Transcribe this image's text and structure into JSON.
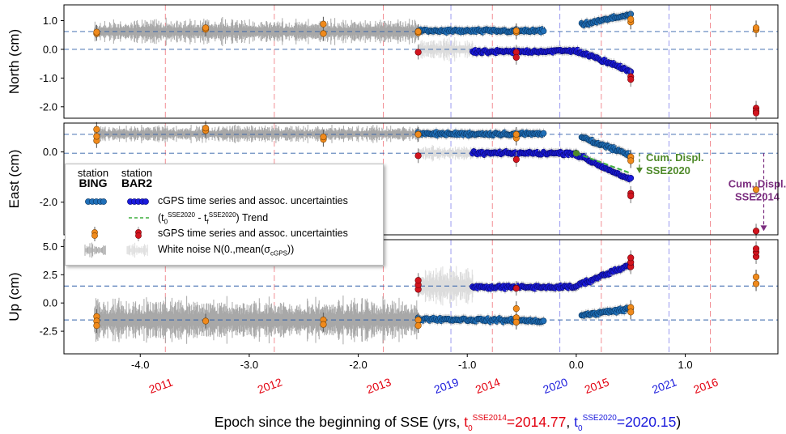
{
  "chart_data": {
    "type": "scatter",
    "xlabel_parts": [
      {
        "text": "Epoch since the beginning of SSE (yrs, ",
        "color": "#000000"
      },
      {
        "text": "t",
        "sub": "0",
        "sup": "SSE2014",
        "after": "=2014.77",
        "color": "#e3000f"
      },
      {
        "text": ", ",
        "color": "#000000"
      },
      {
        "text": "t",
        "sub": "0",
        "sup": "SSE2020",
        "after": "=2020.15",
        "color": "#1a1adc"
      },
      {
        "text": ")",
        "color": "#000000"
      }
    ],
    "xlim": [
      -4.7,
      1.85
    ],
    "xticks": [
      -4.0,
      -3.0,
      -2.0,
      -1.0,
      0.0,
      1.0
    ],
    "xtick_labels": [
      "-4.0",
      "-3.0",
      "-2.0",
      "-1.0",
      "0.0",
      "1.0"
    ],
    "year_labels_2014": {
      "color": "#e3000f",
      "years": [
        "2011",
        "2012",
        "2013",
        "2014",
        "2015",
        "2016"
      ],
      "x": [
        -3.77,
        -2.77,
        -1.77,
        -0.77,
        0.23,
        1.23
      ]
    },
    "year_labels_2020": {
      "color": "#1a1adc",
      "years": [
        "2019",
        "2020",
        "2021"
      ],
      "x": [
        -1.15,
        -0.15,
        0.85
      ]
    },
    "panels": [
      {
        "ylabel": "North (cm)",
        "ylim": [
          -2.4,
          1.55
        ],
        "yticks": [
          -2.0,
          -1.0,
          0.0,
          1.0
        ],
        "ytick_labels": [
          "-2.0",
          "-1.0",
          "0.0",
          "1.0"
        ],
        "ref_lines": [
          0.62,
          0.0
        ],
        "bing_level": 0.62,
        "bing_noise": 0.35,
        "bar2_level": 0.0,
        "bing_cgps_segments": [
          {
            "x": [
              -1.45,
              -0.3
            ],
            "y": [
              0.64,
              0.64
            ]
          },
          {
            "x": [
              0.05,
              0.5
            ],
            "y": [
              0.85,
              1.22
            ]
          }
        ],
        "bar2_cgps_segments": [
          {
            "x": [
              -0.95,
              0.0
            ],
            "y": [
              -0.1,
              -0.05
            ]
          },
          {
            "x": [
              0.0,
              0.5
            ],
            "y": [
              -0.05,
              -0.75
            ]
          }
        ],
        "bing_sgps": [
          {
            "x": -4.4,
            "y": [
              0.55,
              0.6
            ]
          },
          {
            "x": -3.4,
            "y": [
              0.7,
              0.75
            ]
          },
          {
            "x": -2.32,
            "y": [
              0.55,
              0.88
            ]
          },
          {
            "x": -1.45,
            "y": [
              0.58,
              0.62
            ]
          },
          {
            "x": -0.55,
            "y": [
              0.6,
              0.65
            ]
          },
          {
            "x": 0.5,
            "y": [
              0.95,
              1.05
            ]
          },
          {
            "x": 1.65,
            "y": [
              0.68,
              0.75
            ]
          }
        ],
        "bar2_sgps": [
          {
            "x": -1.45,
            "y": [
              -0.1
            ]
          },
          {
            "x": -0.55,
            "y": [
              -0.1,
              -0.28
            ]
          },
          {
            "x": 0.5,
            "y": [
              -0.95,
              -1.05
            ]
          },
          {
            "x": 1.65,
            "y": [
              -2.05,
              -2.15,
              -2.22
            ]
          }
        ]
      },
      {
        "ylabel": "East (cm)",
        "ylim": [
          -3.3,
          1.15
        ],
        "yticks": [
          -2.0,
          0.0
        ],
        "ytick_labels": [
          "-2.0",
          "0.0"
        ],
        "ref_lines": [
          0.7,
          -0.05
        ],
        "bing_level": 0.72,
        "bing_noise": 0.28,
        "bar2_level": -0.05,
        "bing_cgps_segments": [
          {
            "x": [
              -1.45,
              -0.3
            ],
            "y": [
              0.72,
              0.72
            ]
          },
          {
            "x": [
              0.05,
              0.5
            ],
            "y": [
              0.6,
              -0.15
            ]
          }
        ],
        "bar2_cgps_segments": [
          {
            "x": [
              -0.95,
              0.0
            ],
            "y": [
              -0.05,
              -0.05
            ]
          },
          {
            "x": [
              0.0,
              0.5
            ],
            "y": [
              -0.1,
              -1.1
            ]
          }
        ],
        "trend": {
          "x": [
            0.0,
            0.5
          ],
          "y": [
            -0.05,
            -0.85
          ]
        },
        "bing_sgps": [
          {
            "x": -4.4,
            "y": [
              0.45,
              0.62,
              0.9
            ]
          },
          {
            "x": -3.4,
            "y": [
              0.85,
              0.95
            ]
          },
          {
            "x": -2.32,
            "y": [
              0.5,
              0.6
            ]
          },
          {
            "x": -1.45,
            "y": [
              0.7
            ]
          },
          {
            "x": -0.55,
            "y": [
              0.55,
              0.7
            ]
          },
          {
            "x": 0.5,
            "y": [
              -0.2,
              -0.35
            ]
          },
          {
            "x": 1.65,
            "y": [
              -1.5
            ]
          }
        ],
        "bar2_sgps": [
          {
            "x": -1.45,
            "y": [
              -0.15
            ]
          },
          {
            "x": -0.55,
            "y": [
              -0.3
            ]
          },
          {
            "x": 0.5,
            "y": [
              -1.65,
              -1.75
            ]
          },
          {
            "x": 1.65,
            "y": [
              -3.15
            ]
          }
        ],
        "annotations": [
          {
            "lines": [
              "Cum. Displ.",
              "SSE2020"
            ],
            "color": "#4f8a2a",
            "x": 0.58,
            "y_from": -0.05,
            "y_to": -0.85
          },
          {
            "lines": [
              "Cum. Displ.",
              "SSE2014"
            ],
            "color": "#7b2d7f",
            "x": 1.72,
            "y_from": -0.05,
            "y_to": -3.15
          }
        ]
      },
      {
        "ylabel": "Up (cm)",
        "ylim": [
          -4.5,
          5.6
        ],
        "yticks": [
          -2.5,
          0.0,
          2.5,
          5.0
        ],
        "ytick_labels": [
          "-2.5",
          "0.0",
          "2.5",
          "5.0"
        ],
        "ref_lines": [
          1.5,
          -1.5
        ],
        "bing_level": -1.5,
        "bing_noise": 1.6,
        "bar2_level": 1.5,
        "bing_cgps_segments": [
          {
            "x": [
              -1.45,
              -0.3
            ],
            "y": [
              -1.4,
              -1.6
            ]
          },
          {
            "x": [
              0.05,
              0.5
            ],
            "y": [
              -1.1,
              -0.5
            ]
          }
        ],
        "bar2_cgps_segments": [
          {
            "x": [
              -0.95,
              0.0
            ],
            "y": [
              1.4,
              1.4
            ]
          },
          {
            "x": [
              0.0,
              0.5
            ],
            "y": [
              1.5,
              3.4
            ]
          }
        ],
        "bing_sgps": [
          {
            "x": -4.4,
            "y": [
              -1.2,
              -1.6,
              -2.0
            ]
          },
          {
            "x": -3.4,
            "y": [
              -1.6
            ]
          },
          {
            "x": -2.32,
            "y": [
              -1.5,
              -1.9
            ]
          },
          {
            "x": -1.45,
            "y": [
              -1.5,
              -2.0
            ]
          },
          {
            "x": -0.55,
            "y": [
              -0.5,
              -1.3,
              -1.7
            ]
          },
          {
            "x": 0.5,
            "y": [
              -0.4,
              -0.8
            ]
          },
          {
            "x": 1.65,
            "y": [
              1.7,
              2.3
            ]
          }
        ],
        "bar2_sgps": [
          {
            "x": -1.45,
            "y": [
              1.2,
              1.6,
              2.0
            ]
          },
          {
            "x": -0.55,
            "y": [
              1.3
            ]
          },
          {
            "x": 0.5,
            "y": [
              3.2,
              3.6,
              4.0
            ]
          },
          {
            "x": 1.65,
            "y": [
              4.1,
              4.5,
              4.8
            ]
          }
        ]
      }
    ],
    "colors": {
      "bing_cgps": "#1f6fb8",
      "bar2_cgps": "#1a1adc",
      "bing_sgps": "#f08a1c",
      "bar2_sgps": "#d2141e",
      "trend": "#3fae3f",
      "noise_bing": "#a8a8a8",
      "noise_bar2": "#dcdcdc",
      "ref_line_blue": "#2f5fa8",
      "vline_2014": "#e3000f",
      "vline_2020": "#1a1adc"
    }
  },
  "legend": {
    "col1_title": "station",
    "col1_name": "BING",
    "col2_title": "station",
    "col2_name": "BAR2",
    "row1": "cGPS time series and assoc. uncertainties",
    "row2_open": "(t",
    "row2_sub0": "0",
    "row2_sup0": "SSE2020",
    "row2_mid": " - t",
    "row2_sub1": "f",
    "row2_sup1": "SSE2020",
    "row2_close": ") Trend",
    "row3": "sGPS time series and assoc. uncertainties",
    "row4_open": "White noise N(0.,mean(σ",
    "row4_sub": "cGPS",
    "row4_close": "))"
  }
}
